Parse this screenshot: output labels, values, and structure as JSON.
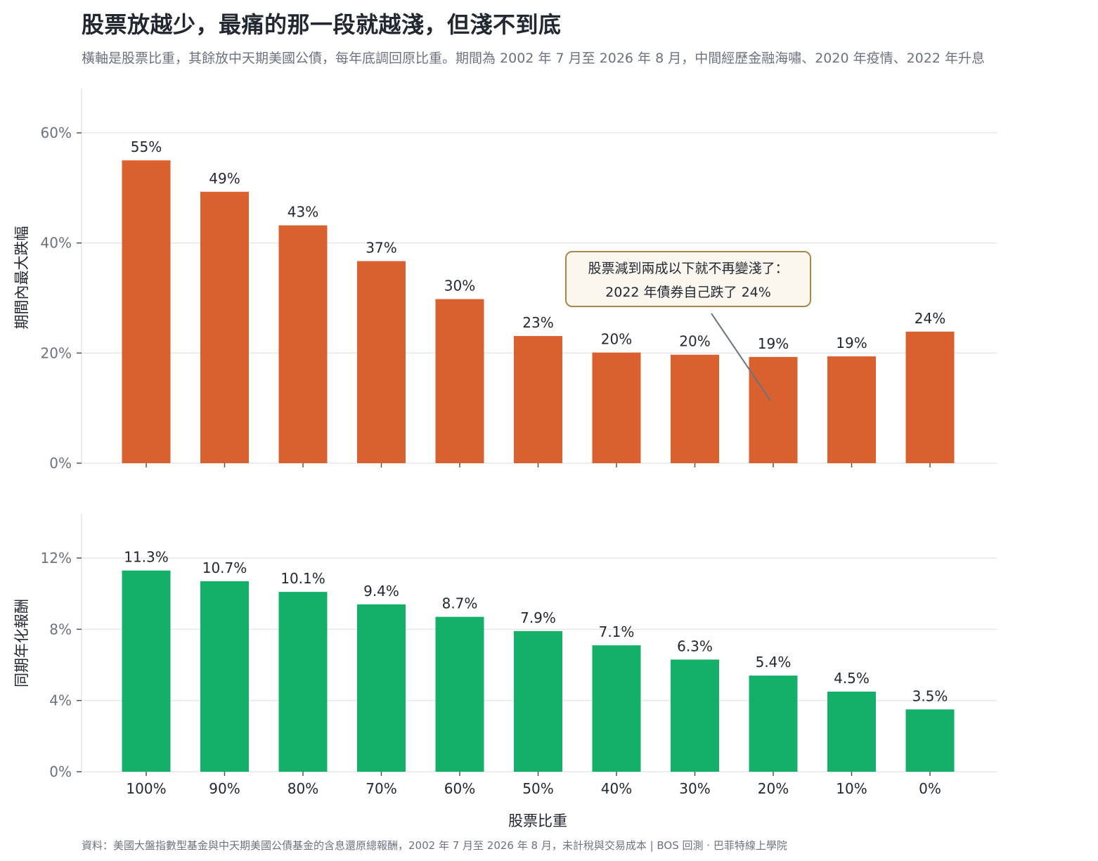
{
  "header": {
    "title": "股票放越少，最痛的那一段就越淺，但淺不到底",
    "subtitle": "橫軸是股票比重，其餘放中天期美國公債，每年底調回原比重。期間為 2002 年 7 月至 2026 年 8 月，中間經歷金融海嘯、2020 年疫情、2022 年升息"
  },
  "footer": {
    "source": "資料：美國大盤指數型基金與中天期美國公債基金的含息還原總報酬，2002 年 7 月至 2026 年 8 月，未計稅與交易成本 | BOS 回測 ·  巴菲特線上學院"
  },
  "annotation": {
    "line1": "股票減到兩成以下就不再變淺了：",
    "line2": "2022 年債券自己跌了 24%",
    "target_category": "20%"
  },
  "colors": {
    "drawdown_bar": "#d9602f",
    "return_bar": "#14b06a",
    "grid": "#e5e7eb",
    "axis": "#9ca3af",
    "annotation_border": "#a9874a",
    "annotation_fill": "#fbf6ee",
    "annotation_arrow": "#6b7280"
  },
  "chart_data": [
    {
      "type": "bar",
      "categories": [
        "100%",
        "90%",
        "80%",
        "70%",
        "60%",
        "50%",
        "40%",
        "30%",
        "20%",
        "10%",
        "0%"
      ],
      "values": [
        55,
        49.3,
        43.2,
        36.7,
        29.8,
        23.1,
        20.1,
        19.7,
        19.3,
        19.4,
        23.9
      ],
      "data_labels": [
        "55%",
        "49%",
        "43%",
        "37%",
        "30%",
        "23%",
        "20%",
        "20%",
        "19%",
        "19%",
        "24%"
      ],
      "ylabel": "期間內最大跌幅",
      "xlabel": "",
      "ylim": [
        0,
        60
      ],
      "yticks": [
        0,
        20,
        40,
        60
      ],
      "ytick_labels": [
        "0%",
        "20%",
        "40%",
        "60%"
      ],
      "grid": true
    },
    {
      "type": "bar",
      "categories": [
        "100%",
        "90%",
        "80%",
        "70%",
        "60%",
        "50%",
        "40%",
        "30%",
        "20%",
        "10%",
        "0%"
      ],
      "values": [
        11.3,
        10.7,
        10.1,
        9.4,
        8.7,
        7.9,
        7.1,
        6.3,
        5.4,
        4.5,
        3.5
      ],
      "data_labels": [
        "11.3%",
        "10.7%",
        "10.1%",
        "9.4%",
        "8.7%",
        "7.9%",
        "7.1%",
        "6.3%",
        "5.4%",
        "4.5%",
        "3.5%"
      ],
      "ylabel": "同期年化報酬",
      "xlabel": "股票比重",
      "ylim": [
        0,
        12
      ],
      "yticks": [
        0,
        4,
        8,
        12
      ],
      "ytick_labels": [
        "0%",
        "4%",
        "8%",
        "12%"
      ],
      "grid": true
    }
  ]
}
